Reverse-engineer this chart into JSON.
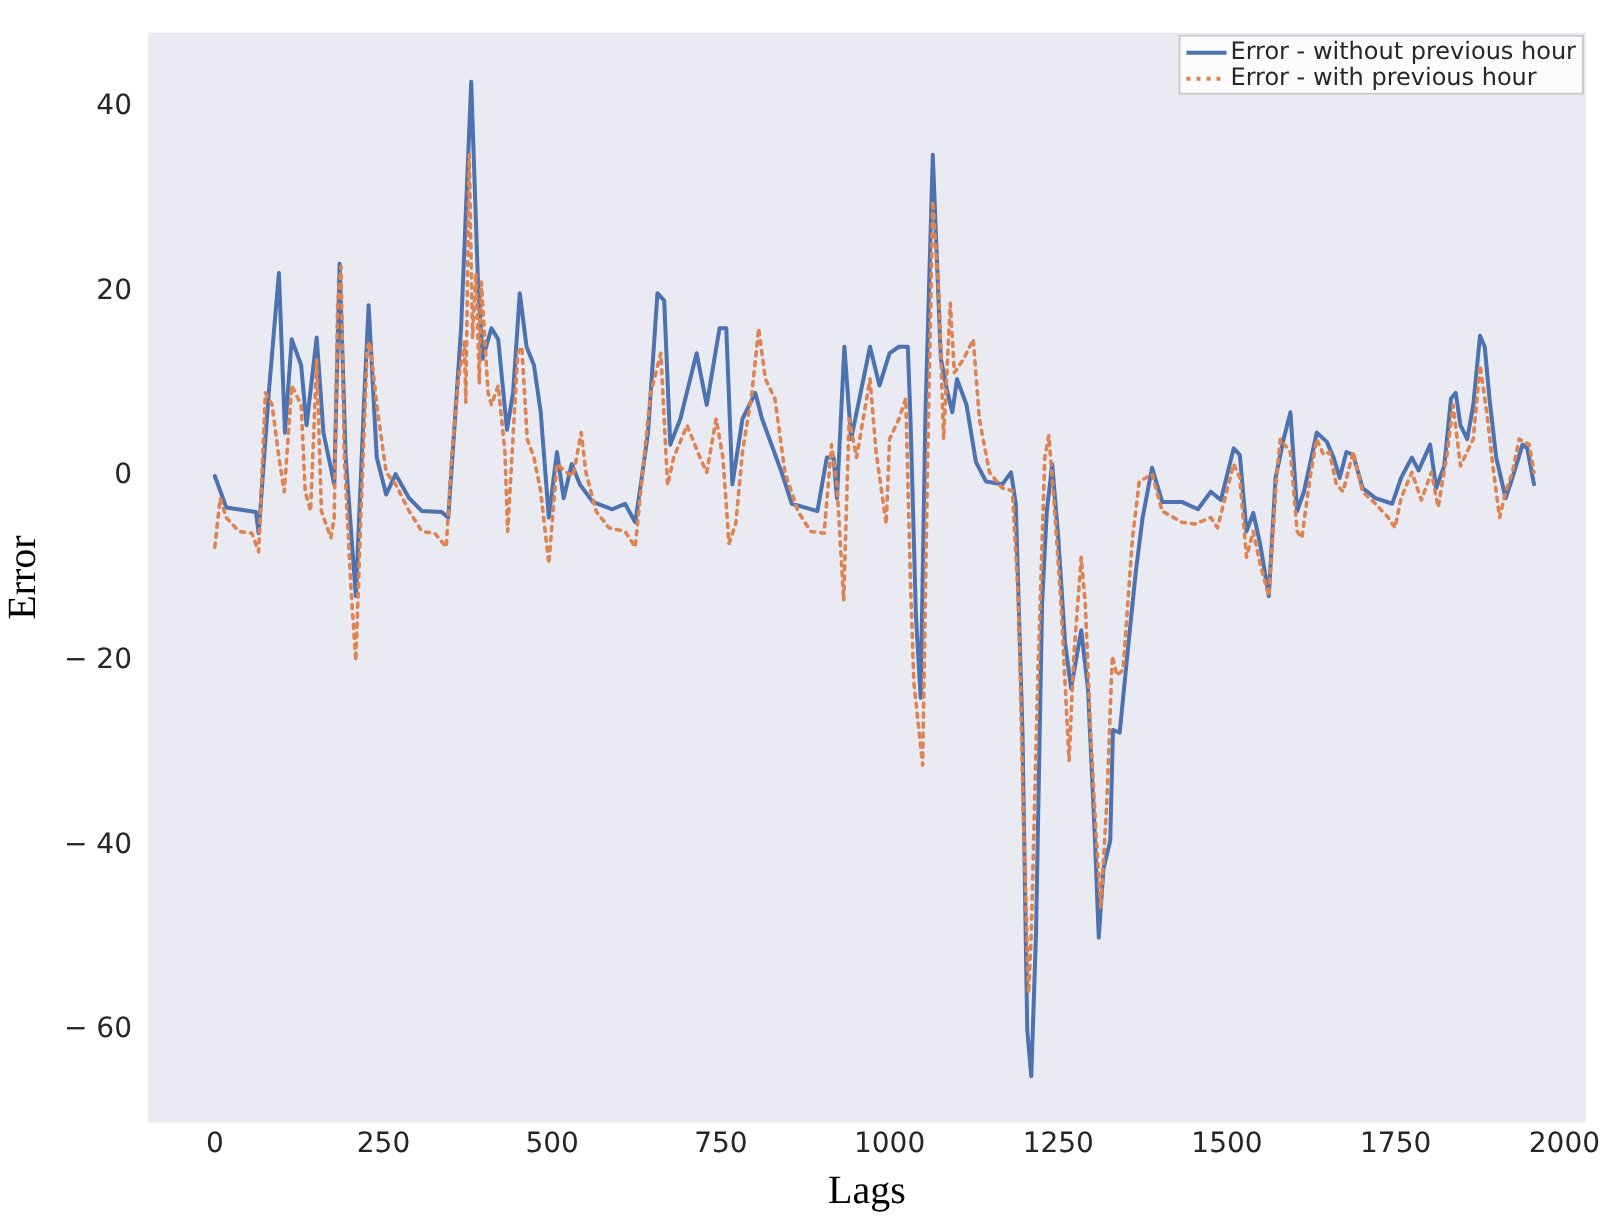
{
  "chart_data": {
    "type": "line",
    "xlabel": "Lags",
    "ylabel": "Error",
    "xlim": [
      -99,
      2032
    ],
    "ylim": [
      -70,
      48
    ],
    "xticks": [
      0,
      250,
      500,
      750,
      1000,
      1250,
      1500,
      1750,
      2000
    ],
    "yticks": [
      {
        "value": -60,
        "label": "− 60"
      },
      {
        "value": -40,
        "label": "− 40"
      },
      {
        "value": -20,
        "label": "− 20"
      },
      0,
      20,
      40
    ],
    "legend": "top right",
    "marker": "none",
    "series": [
      {
        "name": "Error - without previous hour",
        "color": "#4c72b0",
        "line_style": "solid",
        "x": [
          0,
          17,
          61,
          65,
          80,
          95,
          104,
          114,
          128,
          136,
          151,
          161,
          177,
          185,
          194,
          209,
          221,
          228,
          240,
          254,
          268,
          288,
          307,
          336,
          346,
          356,
          365,
          380,
          390,
          397,
          410,
          420,
          433,
          442,
          452,
          462,
          473,
          483,
          495,
          507,
          517,
          529,
          541,
          560,
          589,
          608,
          623,
          632,
          642,
          656,
          666,
          675,
          690,
          714,
          729,
          748,
          758,
          767,
          782,
          801,
          811,
          840,
          855,
          893,
          907,
          917,
          922,
          933,
          943,
          971,
          985,
          1000,
          1014,
          1027,
          1031,
          1039,
          1046,
          1053,
          1064,
          1076,
          1086,
          1093,
          1100,
          1114,
          1128,
          1143,
          1167,
          1180,
          1187,
          1197,
          1204,
          1210,
          1217,
          1226,
          1233,
          1241,
          1250,
          1260,
          1269,
          1284,
          1294,
          1304,
          1310,
          1317,
          1327,
          1331,
          1341,
          1355,
          1365,
          1375,
          1389,
          1404,
          1433,
          1457,
          1476,
          1491,
          1510,
          1519,
          1529,
          1539,
          1549,
          1562,
          1572,
          1584,
          1594,
          1604,
          1614,
          1623,
          1633,
          1648,
          1658,
          1667,
          1677,
          1687,
          1701,
          1720,
          1745,
          1758,
          1774,
          1784,
          1801,
          1810,
          1822,
          1832,
          1839,
          1846,
          1856,
          1865,
          1875,
          1882,
          1889,
          1899,
          1913,
          1923,
          1938,
          1945,
          1955
        ],
        "values": [
          0,
          -3.4,
          -3.9,
          -6.2,
          9,
          22,
          4.7,
          14.8,
          12,
          5.5,
          15,
          4.7,
          -0.9,
          23,
          2,
          -13,
          7.7,
          18.5,
          2,
          -2,
          0.2,
          -2.4,
          -3.8,
          -3.9,
          -4.5,
          6.2,
          16,
          42.7,
          21,
          12.7,
          16,
          14.8,
          5,
          9,
          19.8,
          14,
          12,
          6.9,
          -4.5,
          2.6,
          -2.4,
          1.3,
          -0.9,
          -2.8,
          -3.6,
          -3,
          -5,
          -0.6,
          4.7,
          19.8,
          19,
          3.4,
          6.2,
          13.3,
          7.7,
          16,
          16,
          -0.9,
          6.2,
          9,
          6.2,
          0.4,
          -3,
          -3.8,
          2,
          2,
          -2.4,
          14,
          4,
          14,
          9.8,
          13.3,
          14,
          14,
          6.2,
          -15,
          -24,
          6.2,
          34.8,
          12.7,
          9,
          6.9,
          10.5,
          7.7,
          1.5,
          -0.6,
          -0.9,
          0.4,
          -3,
          -28,
          -60,
          -65,
          -49.6,
          -13.8,
          -3.8,
          1.3,
          -6.7,
          -18,
          -23,
          -16.7,
          -23,
          -38.8,
          -50,
          -42.5,
          -39.5,
          -27.5,
          -27.8,
          -17.4,
          -10.3,
          -4.5,
          0.9,
          -2.8,
          -2.8,
          -3.6,
          -1.7,
          -2.6,
          3,
          2.3,
          -6,
          -4,
          -7.3,
          -13,
          -0.2,
          4,
          6.9,
          -3.8,
          -1.7,
          1.3,
          4.7,
          3.7,
          2,
          -0.2,
          2.6,
          2.3,
          -1.3,
          -2.4,
          -3,
          -0.2,
          2,
          0.6,
          3.4,
          -1.3,
          1.1,
          8.4,
          9,
          5.5,
          4,
          7.7,
          15.2,
          14,
          8.4,
          2,
          -2.4,
          -0.2,
          3.4,
          3,
          -0.9
        ]
      },
      {
        "name": "Error - with previous hour",
        "color": "#dd8452",
        "line_style": "dotted",
        "x": [
          0,
          8,
          17,
          36,
          55,
          65,
          75,
          85,
          95,
          103,
          114,
          128,
          134,
          142,
          151,
          158,
          172,
          177,
          182,
          187,
          192,
          202,
          209,
          216,
          226,
          230,
          240,
          254,
          268,
          288,
          307,
          326,
          343,
          351,
          361,
          370,
          372,
          377,
          382,
          387,
          392,
          395,
          405,
          410,
          420,
          430,
          434,
          439,
          449,
          455,
          463,
          473,
          483,
          495,
          507,
          521,
          531,
          543,
          550,
          565,
          584,
          608,
          623,
          632,
          646,
          661,
          671,
          680,
          700,
          719,
          729,
          743,
          753,
          762,
          772,
          782,
          796,
          806,
          816,
          830,
          845,
          864,
          883,
          903,
          914,
          922,
          932,
          940,
          951,
          971,
          980,
          995,
          1000,
          1014,
          1024,
          1031,
          1036,
          1049,
          1056,
          1064,
          1073,
          1080,
          1090,
          1096,
          1110,
          1124,
          1133,
          1148,
          1167,
          1182,
          1191,
          1199,
          1206,
          1210,
          1220,
          1230,
          1236,
          1244,
          1254,
          1263,
          1266,
          1273,
          1284,
          1290,
          1298,
          1306,
          1313,
          1322,
          1330,
          1337,
          1346,
          1353,
          1360,
          1370,
          1389,
          1404,
          1433,
          1452,
          1476,
          1486,
          1510,
          1519,
          1529,
          1539,
          1549,
          1562,
          1574,
          1579,
          1594,
          1604,
          1611,
          1623,
          1633,
          1643,
          1652,
          1662,
          1672,
          1687,
          1701,
          1720,
          1739,
          1749,
          1758,
          1774,
          1788,
          1803,
          1813,
          1826,
          1835,
          1846,
          1861,
          1865,
          1875,
          1885,
          1894,
          1904,
          1913,
          1923,
          1933,
          1948,
          1955
        ],
        "values": [
          -7.7,
          -2.4,
          -4.5,
          -6,
          -6.2,
          -8.2,
          9,
          7.7,
          2,
          -1.7,
          9.8,
          7.7,
          -1.7,
          -3.8,
          12.7,
          -3.8,
          -6.7,
          -4.5,
          18.5,
          22.7,
          2,
          -12.4,
          -20,
          -5.2,
          14,
          14.5,
          7.7,
          0.4,
          -0.9,
          -3.8,
          -6,
          -6.2,
          -7.7,
          2,
          10.5,
          14.5,
          8,
          34.8,
          15,
          22,
          10,
          21,
          9,
          7.7,
          9.8,
          2.6,
          -6,
          0.4,
          13.3,
          14,
          4,
          2,
          -1.7,
          -9.5,
          1.3,
          0.4,
          0,
          4.7,
          0.4,
          -3.8,
          -5.6,
          -6,
          -7.7,
          -1,
          9,
          13.3,
          -1,
          2,
          5.5,
          2,
          0.4,
          6.2,
          2,
          -7.3,
          -5.2,
          2.6,
          9,
          16,
          10.5,
          8.4,
          0.4,
          -3.8,
          -6,
          -6.2,
          3.4,
          -1,
          -13.5,
          6.2,
          2,
          10.5,
          2.6,
          -5.2,
          4,
          6.2,
          8.4,
          -11.6,
          -22.4,
          -31.3,
          0.4,
          29.8,
          19.8,
          4,
          18.7,
          11.2,
          12.7,
          14.8,
          6.2,
          0.4,
          -1.3,
          -1.6,
          -13.8,
          -38.8,
          -56,
          -49.6,
          -21,
          2,
          4.4,
          -3,
          -13.8,
          -26.6,
          -30.8,
          -19.5,
          -8.8,
          -13.8,
          -28,
          -38.8,
          -46.8,
          -35.3,
          -19.5,
          -21.6,
          -21,
          -13.8,
          -6.7,
          -0.6,
          0.2,
          -3.8,
          -5,
          -5.2,
          -4.5,
          -5.6,
          1.3,
          -0.2,
          -8.8,
          -6,
          -9.5,
          -13,
          0.4,
          4,
          2.6,
          -6,
          -6.7,
          -0.2,
          4,
          2.3,
          2.6,
          -0.9,
          -1.7,
          2.6,
          -1.7,
          -3,
          -4.5,
          -5.6,
          -2.4,
          0.4,
          -2.6,
          0.4,
          -3.4,
          2.3,
          7.7,
          1.1,
          3.4,
          4,
          12,
          6.9,
          1.1,
          -4.5,
          -1.7,
          0.4,
          4,
          3.4,
          0.4
        ]
      }
    ]
  }
}
